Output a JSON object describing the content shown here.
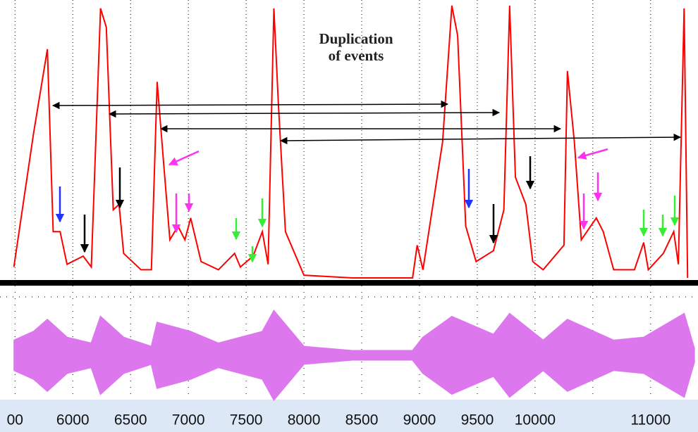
{
  "chart_data": {
    "type": "line",
    "annotation": [
      "Duplication",
      "of events"
    ],
    "xlim": [
      5370,
      11410
    ],
    "xticks": [
      {
        "value": 5500,
        "label": "00"
      },
      6000,
      6500,
      7000,
      7500,
      8000,
      8500,
      9000,
      9500,
      10000,
      {
        "value": 10500,
        "label": null
      },
      11000
    ],
    "ylim": [
      0,
      100
    ],
    "y2lim": [
      -110,
      110
    ],
    "grid": true,
    "series": [
      {
        "color": "#ff0000",
        "x": [
          5490,
          5660,
          5780,
          5830,
          5890,
          5950,
          6090,
          6160,
          6240,
          6290,
          6350,
          6400,
          6440,
          6590,
          6680,
          6730,
          6790,
          6840,
          6910,
          6970,
          7020,
          7110,
          7260,
          7400,
          7450,
          7560,
          7640,
          7690,
          7740,
          7780,
          7840,
          8000,
          8420,
          8940,
          8980,
          9030,
          9200,
          9280,
          9330,
          9400,
          9490,
          9640,
          9730,
          9780,
          9830,
          9920,
          9980,
          10070,
          10250,
          10280,
          10340,
          10400,
          10530,
          10590,
          10680,
          10860,
          10940,
          10980,
          11110,
          11200,
          11240,
          11290,
          11320
        ],
        "values": [
          4,
          53,
          84,
          17,
          17,
          5,
          8,
          4,
          99,
          92,
          25,
          27,
          9,
          3,
          3,
          72,
          40,
          14,
          19,
          14,
          22,
          6,
          3,
          9,
          4,
          8,
          17,
          5,
          99,
          63,
          17,
          1,
          0,
          0,
          12,
          3,
          50,
          100,
          89,
          19,
          6,
          10,
          25,
          100,
          37,
          27,
          6,
          3,
          12,
          76,
          50,
          14,
          22,
          17,
          3,
          3,
          13,
          3,
          9,
          17,
          5,
          99,
          0
        ]
      },
      {
        "color": "#dd77ee",
        "axis": "y2",
        "x": [
          5490,
          5660,
          5780,
          5950,
          6160,
          6240,
          6440,
          6680,
          6730,
          7020,
          7260,
          7640,
          7740,
          8000,
          8420,
          8940,
          9030,
          9280,
          9640,
          9780,
          10070,
          10280,
          10680,
          10940,
          11290,
          11380
        ],
        "values": [
          36,
          57,
          86,
          43,
          29,
          93,
          43,
          21,
          79,
          57,
          29,
          57,
          107,
          21,
          11,
          11,
          43,
          93,
          50,
          100,
          36,
          86,
          36,
          43,
          100,
          14
        ]
      }
    ]
  }
}
